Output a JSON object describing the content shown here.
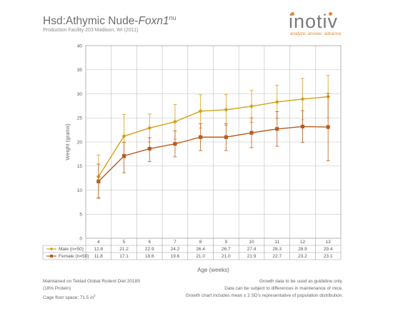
{
  "header": {
    "title_main": "Hsd:Athymic Nude-",
    "title_gene": "Foxn1",
    "title_sup": "nu",
    "subtitle": "Production Facility 203 Madison, WI (2011)"
  },
  "logo": {
    "word": "inotiv",
    "tagline": "analyze. answer. advance."
  },
  "chart_data": {
    "type": "line",
    "title": "",
    "xlabel": "Age (weeks)",
    "ylabel": "Weight (grams)",
    "categories": [
      "4",
      "5",
      "6",
      "7",
      "8",
      "9",
      "10",
      "11",
      "12",
      "13"
    ],
    "ylim": [
      0,
      40
    ],
    "yticks": [
      0,
      5,
      10,
      15,
      20,
      25,
      30,
      35,
      40
    ],
    "grid": true,
    "legend": "data-table-left",
    "series": [
      {
        "name": "Male (n=50)",
        "color": "#d4a017",
        "marker": "diamond",
        "values": [
          12.8,
          21.2,
          22.9,
          24.2,
          26.4,
          26.7,
          27.4,
          28.3,
          28.9,
          29.4
        ],
        "upper": [
          17.3,
          25.7,
          25.8,
          27.8,
          29.8,
          29.9,
          30.7,
          31.8,
          33.2,
          33.8
        ],
        "lower": [
          8.4,
          16.7,
          20.0,
          20.6,
          22.9,
          23.5,
          24.1,
          24.9,
          24.6,
          25.0
        ]
      },
      {
        "name": "Female (n=50)",
        "color": "#b85c1e",
        "marker": "square",
        "values": [
          11.8,
          17.1,
          18.6,
          19.6,
          21.0,
          21.0,
          21.9,
          22.7,
          23.2,
          23.1
        ],
        "upper": [
          15.4,
          19.9,
          20.9,
          22.3,
          23.8,
          23.8,
          25.0,
          26.3,
          26.5,
          30.1
        ],
        "lower": [
          8.3,
          13.6,
          15.9,
          16.9,
          18.2,
          18.2,
          18.8,
          19.1,
          19.9,
          16.1
        ]
      }
    ]
  },
  "footer": {
    "left_line1": "Maintained on Teklad Global Rodent Diet 2018S",
    "left_line2": "(18% Protein)",
    "left_line3": "Cage floor space: 71.5 in",
    "left_line3_sup": "2",
    "right_line1": "Growth data to be used as guideline only.",
    "right_line2": "Data can be subject to differences in maintenance of mice.",
    "right_line3": "Growth chart includes mean ± 2 SD's representative of population distribution."
  }
}
